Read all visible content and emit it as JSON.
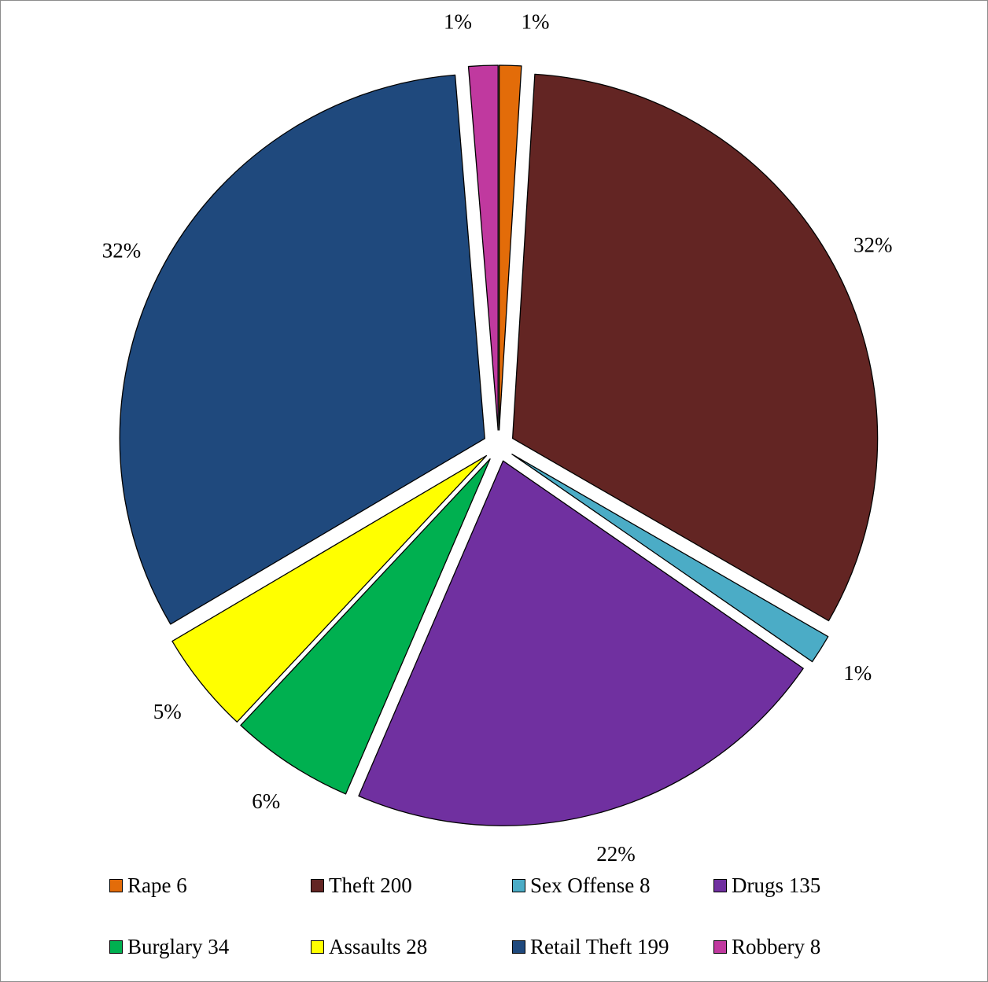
{
  "chart_data": {
    "type": "pie",
    "title": "",
    "legend_position": "bottom",
    "slices": [
      {
        "name": "Rape",
        "value": 6,
        "legend_label": "Rape 6",
        "percent_label": "1%",
        "color": "#E36C09",
        "exploded": true
      },
      {
        "name": "Theft",
        "value": 200,
        "legend_label": "Theft 200",
        "percent_label": "32%",
        "color": "#632523",
        "exploded": true
      },
      {
        "name": "Sex Offense",
        "value": 8,
        "legend_label": "Sex Offense 8",
        "percent_label": "1%",
        "color": "#4BACC6",
        "exploded": true
      },
      {
        "name": "Drugs",
        "value": 135,
        "legend_label": "Drugs 135",
        "percent_label": "22%",
        "color": "#7030A0",
        "exploded": true
      },
      {
        "name": "Burglary",
        "value": 34,
        "legend_label": "Burglary 34",
        "percent_label": "6%",
        "color": "#00B050",
        "exploded": true
      },
      {
        "name": "Assaults",
        "value": 28,
        "legend_label": "Assaults 28",
        "percent_label": "5%",
        "color": "#FFFF00",
        "exploded": true
      },
      {
        "name": "Retail Theft",
        "value": 199,
        "legend_label": "Retail Theft 199",
        "percent_label": "32%",
        "color": "#1F497D",
        "exploded": true
      },
      {
        "name": "Robbery",
        "value": 8,
        "legend_label": "Robbery 8",
        "percent_label": "1%",
        "color": "#C0399F",
        "exploded": true
      }
    ]
  }
}
